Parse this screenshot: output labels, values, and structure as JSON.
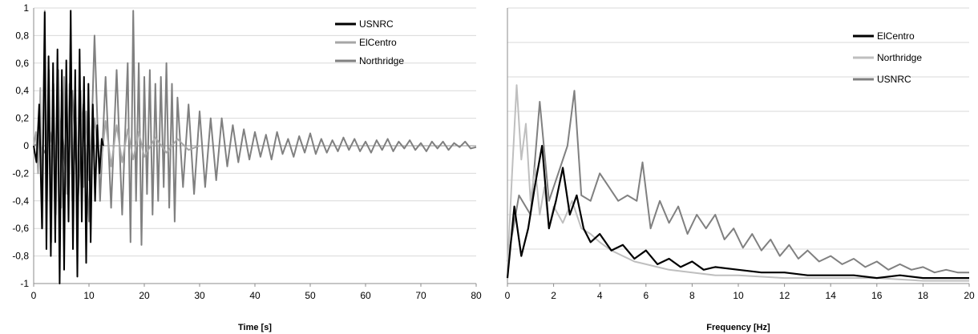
{
  "chart_data": [
    {
      "type": "line",
      "xlabel": "Time [s]",
      "ylabel": "",
      "xlim": [
        0,
        80
      ],
      "ylim": [
        -1,
        1
      ],
      "xticks": [
        "0",
        "10",
        "20",
        "30",
        "40",
        "50",
        "60",
        "70",
        "80"
      ],
      "yticks": [
        "-1",
        "-0,8",
        "-0,6",
        "-0,4",
        "-0,2",
        "0",
        "0,2",
        "0,4",
        "0,6",
        "0,8",
        "1"
      ],
      "grid": "horizontal",
      "legend_position": "top-right",
      "series": [
        {
          "name": "USNRC",
          "color": "#000000",
          "values_note": "x (s), y (normalized acceleration)",
          "x": [
            0,
            0.5,
            1,
            1.5,
            2,
            2.3,
            2.7,
            3.1,
            3.5,
            3.9,
            4.3,
            4.7,
            5.1,
            5.5,
            5.9,
            6.3,
            6.7,
            7.1,
            7.5,
            7.9,
            8.3,
            8.7,
            9.1,
            9.5,
            9.9,
            10.3,
            10.7,
            11.1,
            11.5,
            11.9,
            12.3,
            12.6
          ],
          "y": [
            0,
            -0.12,
            0.3,
            -0.6,
            0.97,
            -0.75,
            0.65,
            -0.8,
            0.6,
            -0.7,
            0.7,
            -1.0,
            0.55,
            -0.9,
            0.62,
            -0.55,
            0.98,
            -0.75,
            0.55,
            -0.95,
            0.7,
            -0.55,
            0.5,
            -0.85,
            0.45,
            -0.7,
            0.3,
            -0.4,
            0.15,
            -0.2,
            0.05,
            0
          ]
        },
        {
          "name": "ElCentro",
          "color": "#a6a6a6",
          "values_note": "x (s), y (normalized acceleration)",
          "x": [
            0,
            0.4,
            0.8,
            1.2,
            1.6,
            2.0,
            2.4,
            2.8,
            3.2,
            3.6,
            4.0,
            4.5,
            5.0,
            5.5,
            6.0,
            6.5,
            7.0,
            7.5,
            8.0,
            8.5,
            9.0,
            9.5,
            10.0,
            11.0,
            12.0,
            13.0,
            14.0,
            15.0,
            16.0,
            17.0,
            18.0,
            19.0,
            20.0,
            22.0,
            24.0,
            26.0,
            28.0,
            30.0
          ],
          "y": [
            0,
            0.1,
            -0.2,
            0.42,
            -0.6,
            0.98,
            -0.4,
            0.55,
            -0.7,
            0.45,
            -0.5,
            0.55,
            -0.45,
            0.5,
            -0.35,
            0.45,
            -0.4,
            0.35,
            -0.3,
            0.4,
            -0.3,
            0.25,
            -0.25,
            0.2,
            -0.2,
            0.18,
            -0.15,
            0.15,
            -0.12,
            0.12,
            -0.1,
            0.1,
            -0.08,
            0.06,
            -0.05,
            0.05,
            -0.03,
            0
          ]
        },
        {
          "name": "Northridge",
          "color": "#808080",
          "values_note": "x (s), y (normalized acceleration)",
          "x": [
            0,
            1,
            2,
            3,
            4,
            5,
            6,
            7,
            8,
            9,
            10,
            11,
            12,
            13,
            14,
            15,
            16,
            17,
            17.5,
            18,
            18.5,
            19,
            19.5,
            20,
            20.5,
            21,
            21.5,
            22,
            22.5,
            23,
            23.5,
            24,
            24.5,
            25,
            25.5,
            26,
            27,
            28,
            29,
            30,
            31,
            32,
            33,
            34,
            35,
            36,
            37,
            38,
            39,
            40,
            41,
            42,
            43,
            44,
            45,
            46,
            47,
            48,
            49,
            50,
            51,
            52,
            53,
            54,
            55,
            56,
            57,
            58,
            59,
            60,
            61,
            62,
            63,
            64,
            65,
            66,
            67,
            68,
            69,
            70,
            71,
            72,
            73,
            74,
            75,
            76,
            77,
            78,
            79,
            80
          ],
          "y": [
            0,
            0.02,
            -0.05,
            0.1,
            -0.15,
            0.2,
            -0.3,
            0.4,
            -0.4,
            0.3,
            -0.55,
            0.8,
            -0.4,
            0.5,
            -0.45,
            0.55,
            -0.5,
            0.6,
            -0.7,
            0.98,
            -0.4,
            0.6,
            -0.72,
            0.5,
            -0.35,
            0.55,
            -0.5,
            0.45,
            -0.4,
            0.5,
            -0.3,
            0.6,
            -0.45,
            0.45,
            -0.55,
            0.35,
            -0.3,
            0.3,
            -0.35,
            0.25,
            -0.3,
            0.2,
            -0.25,
            0.2,
            -0.15,
            0.15,
            -0.12,
            0.12,
            -0.1,
            0.1,
            -0.08,
            0.08,
            -0.1,
            0.1,
            -0.06,
            0.05,
            -0.08,
            0.07,
            -0.05,
            0.09,
            -0.06,
            0.05,
            -0.05,
            0.04,
            -0.04,
            0.06,
            -0.03,
            0.05,
            -0.04,
            0.03,
            -0.05,
            0.04,
            -0.03,
            0.05,
            -0.04,
            0.03,
            -0.02,
            0.04,
            -0.03,
            0.02,
            -0.04,
            0.03,
            -0.02,
            0.03,
            -0.03,
            0.02,
            -0.01,
            0.03,
            -0.02,
            -0.01
          ]
        }
      ]
    },
    {
      "type": "line",
      "xlabel": "Frequency [Hz]",
      "ylabel": "",
      "xlim": [
        0,
        20
      ],
      "xticks": [
        "0",
        "2",
        "4",
        "6",
        "8",
        "10",
        "12",
        "14",
        "16",
        "18",
        "20"
      ],
      "grid": "horizontal",
      "legend_position": "top-right",
      "series": [
        {
          "name": "ElCentro",
          "color": "#000000",
          "values_note": "x (Hz), y (relative amplitude, 0-1 scale of plot height)",
          "x": [
            0,
            0.3,
            0.6,
            0.9,
            1.2,
            1.5,
            1.8,
            2.1,
            2.4,
            2.7,
            3.0,
            3.3,
            3.6,
            4.0,
            4.5,
            5.0,
            5.5,
            6.0,
            6.5,
            7.0,
            7.5,
            8.0,
            8.5,
            9.0,
            10.0,
            11.0,
            12.0,
            13.0,
            14.0,
            15.0,
            16.0,
            17.0,
            18.0,
            19.0,
            20.0
          ],
          "y": [
            0.02,
            0.28,
            0.1,
            0.2,
            0.36,
            0.5,
            0.2,
            0.3,
            0.42,
            0.25,
            0.32,
            0.2,
            0.15,
            0.18,
            0.12,
            0.14,
            0.09,
            0.12,
            0.07,
            0.09,
            0.06,
            0.08,
            0.05,
            0.06,
            0.05,
            0.04,
            0.04,
            0.03,
            0.03,
            0.03,
            0.02,
            0.03,
            0.02,
            0.02,
            0.02
          ]
        },
        {
          "name": "Northridge",
          "color": "#bfbfbf",
          "values_note": "x (Hz), y (relative amplitude)",
          "x": [
            0,
            0.2,
            0.4,
            0.6,
            0.8,
            1.0,
            1.2,
            1.4,
            1.6,
            1.8,
            2.0,
            2.4,
            2.8,
            3.2,
            3.6,
            4.0,
            4.5,
            5.0,
            5.5,
            6.0,
            6.5,
            7.0,
            8.0,
            9.0,
            10.0,
            12.0,
            14.0,
            16.0,
            18.0,
            20.0
          ],
          "y": [
            0.05,
            0.4,
            0.72,
            0.45,
            0.58,
            0.3,
            0.42,
            0.25,
            0.35,
            0.2,
            0.28,
            0.22,
            0.3,
            0.2,
            0.18,
            0.15,
            0.12,
            0.1,
            0.08,
            0.07,
            0.06,
            0.05,
            0.04,
            0.03,
            0.03,
            0.02,
            0.02,
            0.02,
            0.01,
            0.01
          ]
        },
        {
          "name": "USNRC",
          "color": "#808080",
          "values_note": "x (Hz), y (relative amplitude)",
          "x": [
            0,
            0.5,
            1.0,
            1.4,
            1.8,
            2.2,
            2.6,
            2.9,
            3.2,
            3.6,
            4.0,
            4.4,
            4.8,
            5.2,
            5.6,
            5.85,
            6.2,
            6.6,
            7.0,
            7.4,
            7.8,
            8.2,
            8.6,
            9.0,
            9.4,
            9.8,
            10.2,
            10.6,
            11.0,
            11.4,
            11.8,
            12.2,
            12.6,
            13.0,
            13.5,
            14.0,
            14.5,
            15.0,
            15.5,
            16.0,
            16.5,
            17.0,
            17.5,
            18.0,
            18.5,
            19.0,
            19.5,
            20.0
          ],
          "y": [
            0.08,
            0.32,
            0.25,
            0.66,
            0.3,
            0.4,
            0.5,
            0.7,
            0.32,
            0.3,
            0.4,
            0.35,
            0.3,
            0.32,
            0.3,
            0.44,
            0.2,
            0.3,
            0.22,
            0.28,
            0.18,
            0.25,
            0.2,
            0.25,
            0.16,
            0.2,
            0.13,
            0.18,
            0.12,
            0.16,
            0.1,
            0.14,
            0.09,
            0.12,
            0.08,
            0.1,
            0.07,
            0.09,
            0.06,
            0.08,
            0.05,
            0.07,
            0.05,
            0.06,
            0.04,
            0.05,
            0.04,
            0.04
          ]
        }
      ]
    }
  ]
}
